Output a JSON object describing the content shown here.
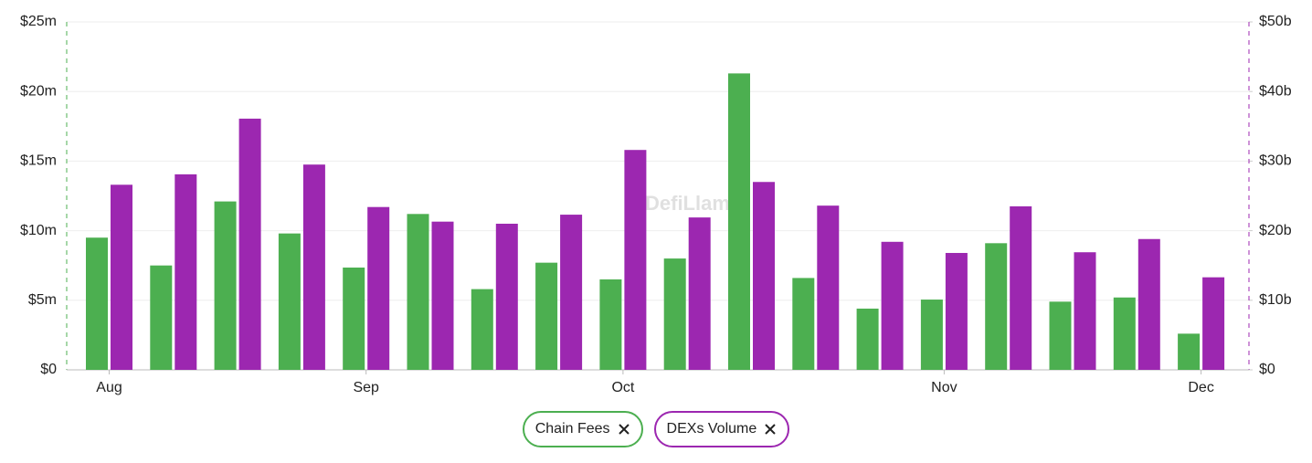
{
  "chart_data": {
    "type": "bar",
    "watermark": "DefiLlama",
    "categories": [
      "Aug",
      null,
      null,
      null,
      "Sep",
      null,
      null,
      null,
      "Oct",
      null,
      null,
      null,
      null,
      "Nov",
      null,
      null,
      null,
      "Dec"
    ],
    "series": [
      {
        "name": "Chain Fees",
        "color": "#4caf50",
        "values": [
          9.5,
          7.5,
          12.1,
          9.8,
          7.35,
          11.2,
          5.8,
          7.7,
          6.5,
          8.0,
          21.3,
          6.6,
          4.4,
          5.05,
          9.1,
          4.9,
          5.2,
          2.6
        ]
      },
      {
        "name": "DEXs Volume",
        "color": "#9c27b0",
        "axis": "y2",
        "values": [
          26.6,
          28.1,
          36.1,
          29.5,
          23.4,
          21.3,
          21.0,
          22.3,
          31.6,
          21.9,
          27.0,
          23.6,
          18.4,
          16.8,
          23.5,
          16.9,
          18.8,
          13.3
        ]
      }
    ],
    "ylim": [
      0,
      25
    ],
    "yticks": [
      {
        "value": 0,
        "label": "$0"
      },
      {
        "value": 5,
        "label": "$5m"
      },
      {
        "value": 10,
        "label": "$10m"
      },
      {
        "value": 15,
        "label": "$15m"
      },
      {
        "value": 20,
        "label": "$20m"
      },
      {
        "value": 25,
        "label": "$25m"
      }
    ],
    "y2lim": [
      0,
      50
    ],
    "y2ticks": [
      {
        "value": 0,
        "label": "$0"
      },
      {
        "value": 10,
        "label": "$10b"
      },
      {
        "value": 20,
        "label": "$20b"
      },
      {
        "value": 30,
        "label": "$30b"
      },
      {
        "value": 40,
        "label": "$40b"
      },
      {
        "value": 50,
        "label": "$50b"
      }
    ],
    "grid": true
  }
}
